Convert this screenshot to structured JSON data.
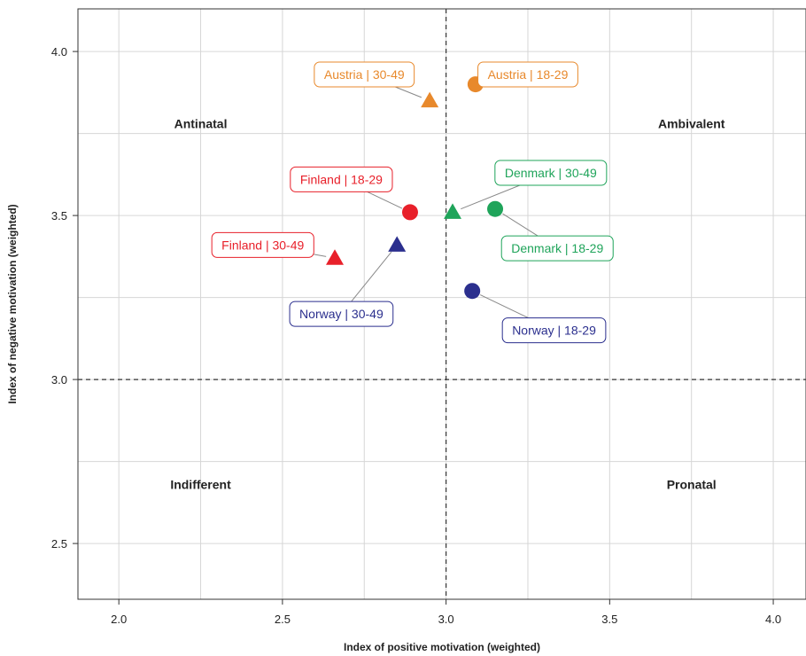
{
  "chart_data": {
    "type": "scatter",
    "title": "",
    "xlabel": "Index of positive motivation (weighted)",
    "ylabel": "Index of negative motivation (weighted)",
    "xlim": [
      1.875,
      4.1
    ],
    "ylim": [
      2.33,
      4.13
    ],
    "xticks": [
      "2.0",
      "2.5",
      "3.0",
      "3.5",
      "4.0"
    ],
    "yticks": [
      "2.5",
      "3.0",
      "3.5",
      "4.0"
    ],
    "xtick_values": [
      2.0,
      2.5,
      3.0,
      3.5,
      4.0
    ],
    "ytick_values": [
      2.5,
      3.0,
      3.5,
      4.0
    ],
    "x_minor_grid": [
      2.25,
      2.75,
      3.25,
      3.75
    ],
    "y_minor_grid": [
      2.75,
      3.25,
      3.75
    ],
    "grid": true,
    "reference_lines": {
      "x": 3.0,
      "y": 3.0,
      "style": "dashed"
    },
    "quadrants": [
      {
        "label": "Antinatal",
        "x": 2.25,
        "y": 3.78
      },
      {
        "label": "Ambivalent",
        "x": 3.75,
        "y": 3.78
      },
      {
        "label": "Indifferent",
        "x": 2.25,
        "y": 2.68
      },
      {
        "label": "Pronatal",
        "x": 3.75,
        "y": 2.68
      }
    ],
    "colors": {
      "Austria": "#e8892c",
      "Finland": "#e8202a",
      "Denmark": "#1fa45a",
      "Norway": "#2b2f8e"
    },
    "points": [
      {
        "label": "Austria | 18-29",
        "country": "Austria",
        "age": "18-29",
        "marker": "circle",
        "x": 3.09,
        "y": 3.9,
        "label_x": 3.25,
        "label_y": 3.93
      },
      {
        "label": "Austria | 30-49",
        "country": "Austria",
        "age": "30-49",
        "marker": "triangle",
        "x": 2.95,
        "y": 3.85,
        "label_x": 2.75,
        "label_y": 3.93
      },
      {
        "label": "Finland | 18-29",
        "country": "Finland",
        "age": "18-29",
        "marker": "circle",
        "x": 2.89,
        "y": 3.51,
        "label_x": 2.68,
        "label_y": 3.61
      },
      {
        "label": "Finland | 30-49",
        "country": "Finland",
        "age": "30-49",
        "marker": "triangle",
        "x": 2.66,
        "y": 3.37,
        "label_x": 2.44,
        "label_y": 3.41
      },
      {
        "label": "Denmark | 30-49",
        "country": "Denmark",
        "age": "30-49",
        "marker": "triangle",
        "x": 3.02,
        "y": 3.51,
        "label_x": 3.32,
        "label_y": 3.63
      },
      {
        "label": "Denmark | 18-29",
        "country": "Denmark",
        "age": "18-29",
        "marker": "circle",
        "x": 3.15,
        "y": 3.52,
        "label_x": 3.34,
        "label_y": 3.4
      },
      {
        "label": "Norway | 30-49",
        "country": "Norway",
        "age": "30-49",
        "marker": "triangle",
        "x": 2.85,
        "y": 3.41,
        "label_x": 2.68,
        "label_y": 3.2
      },
      {
        "label": "Norway | 18-29",
        "country": "Norway",
        "age": "18-29",
        "marker": "circle",
        "x": 3.08,
        "y": 3.27,
        "label_x": 3.33,
        "label_y": 3.15
      }
    ]
  }
}
